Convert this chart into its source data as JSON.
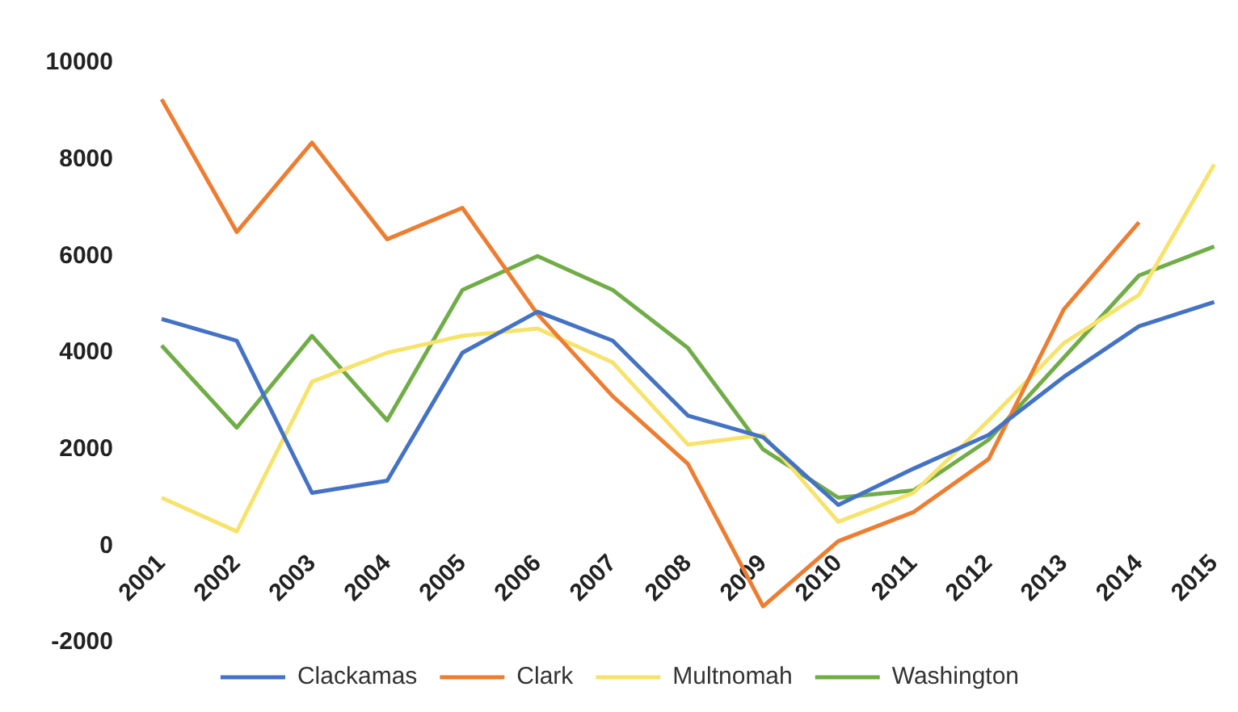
{
  "chart_data": {
    "type": "line",
    "categories": [
      "2001",
      "2002",
      "2003",
      "2004",
      "2005",
      "2006",
      "2007",
      "2008",
      "2009",
      "2010",
      "2011",
      "2012",
      "2013",
      "2014",
      "2015"
    ],
    "series": [
      {
        "name": "Clackamas",
        "color": "#4472c4",
        "values": [
          4700,
          4250,
          1100,
          1350,
          4000,
          4850,
          4250,
          2700,
          2250,
          850,
          1600,
          2300,
          3500,
          4550,
          5050
        ]
      },
      {
        "name": "Clark",
        "color": "#ed7d31",
        "values": [
          9250,
          6500,
          8350,
          6350,
          7000,
          4800,
          3100,
          1700,
          -1250,
          100,
          700,
          1800,
          4900,
          6700,
          null
        ]
      },
      {
        "name": "Multnomah",
        "color": "#f7e36b",
        "values": [
          1000,
          300,
          3400,
          4000,
          4350,
          4500,
          3800,
          2100,
          2300,
          500,
          1100,
          2600,
          4200,
          5200,
          7900
        ]
      },
      {
        "name": "Washington",
        "color": "#70ad47",
        "values": [
          4150,
          2450,
          4350,
          2600,
          5300,
          6000,
          5300,
          4100,
          2000,
          1000,
          1150,
          2200,
          3900,
          5600,
          6200
        ]
      }
    ],
    "ylim": [
      -2000,
      10000
    ],
    "yticks": [
      -2000,
      0,
      2000,
      4000,
      6000,
      8000,
      10000
    ],
    "grid": false,
    "legend": "bottom",
    "marker": "none",
    "line_style": "solid"
  }
}
